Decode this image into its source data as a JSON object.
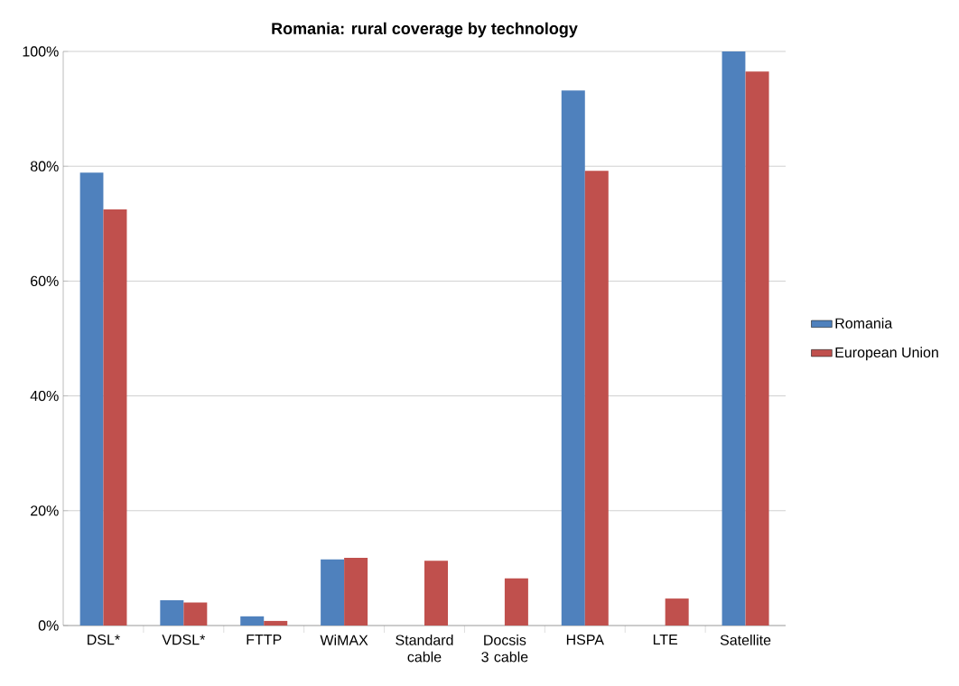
{
  "chart_data": {
    "type": "bar",
    "title": "Romania: rural coverage by technology",
    "categories": [
      "DSL*",
      "VDSL*",
      "FTTP",
      "WiMAX",
      "Standard cable",
      "Docsis 3 cable",
      "HSPA",
      "LTE",
      "Satellite"
    ],
    "series": [
      {
        "name": "Romania",
        "color": "#4f81bd",
        "values": [
          78.9,
          4.4,
          1.6,
          11.5,
          null,
          null,
          93.2,
          null,
          100
        ]
      },
      {
        "name": "European Union",
        "color": "#c0504d",
        "values": [
          72.5,
          4.0,
          0.8,
          11.8,
          11.3,
          8.2,
          79.2,
          4.7,
          96.5
        ]
      }
    ],
    "ylim": [
      0,
      100
    ],
    "yticks": [
      {
        "value": 0,
        "label": "0%"
      },
      {
        "value": 20,
        "label": "20%"
      },
      {
        "value": 40,
        "label": "40%"
      },
      {
        "value": 60,
        "label": "60%"
      },
      {
        "value": 80,
        "label": "80%"
      },
      {
        "value": 100,
        "label": "100%"
      }
    ],
    "grid": "y",
    "legend": "right"
  }
}
